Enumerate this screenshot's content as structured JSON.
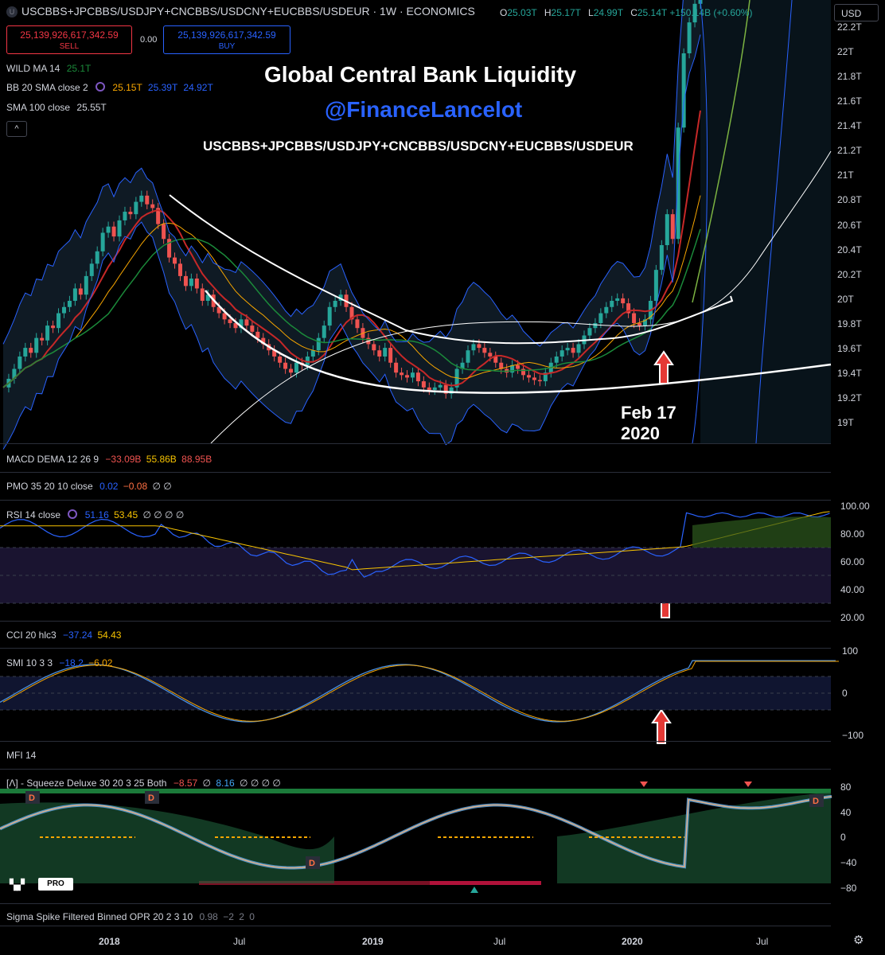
{
  "header": {
    "badge": "U",
    "symbol": "USCBBS+JPCBBS/USDJPY+CNCBBS/USDCNY+EUCBBS/USDEUR",
    "interval": "1W",
    "exchange": "ECONOMICS",
    "title_line": "USCBBS+JPCBBS/USDJPY+CNCBBS/USDCNY+EUCBBS/USDEUR · 1W · ECONOMICS",
    "ohlc": {
      "o_label": "O",
      "o": "25.03T",
      "h_label": "H",
      "h": "25.17T",
      "l_label": "L",
      "l": "24.99T",
      "c_label": "C",
      "c": "25.14T",
      "change": "+150.14B (+0.60%)"
    },
    "currency": "USD"
  },
  "trade": {
    "sell_price": "25,139,926,617,342.59",
    "sell_label": "SELL",
    "spread": "0.00",
    "buy_price": "25,139,926,617,342.59",
    "buy_label": "BUY"
  },
  "legends": {
    "wild_ma": {
      "name": "WILD MA 14",
      "value": "25.1T"
    },
    "bb": {
      "name": "BB 20 SMA close 2",
      "v1": "25.15T",
      "v2": "25.39T",
      "v3": "24.92T"
    },
    "sma": {
      "name": "SMA 100 close",
      "value": "25.55T"
    }
  },
  "annotations": {
    "title": "Global Central Bank Liquidity",
    "handle": "@FinanceLancelot",
    "formula": "USCBBS+JPCBBS/USDJPY+CNCBBS/USDCNY+EUCBBS/USDEUR",
    "date_line1": "Feb 17",
    "date_line2": "2020"
  },
  "price_axis": [
    "22.2T",
    "22T",
    "21.8T",
    "21.6T",
    "21.4T",
    "21.2T",
    "21T",
    "20.8T",
    "20.6T",
    "20.4T",
    "20.2T",
    "20T",
    "19.8T",
    "19.6T",
    "19.4T",
    "19.2T",
    "19T"
  ],
  "panes": {
    "macd": {
      "name": "MACD DEMA 12 26 9",
      "v1": "−33.09B",
      "v2": "55.86B",
      "v3": "88.95B"
    },
    "pmo": {
      "name": "PMO 35 20 10 close",
      "v1": "0.02",
      "v2": "−0.08",
      "v3": "∅ ∅"
    },
    "rsi": {
      "name": "RSI 14 close",
      "v1": "51.16",
      "v2": "53.45",
      "rest": "∅ ∅ ∅ ∅",
      "axis": [
        "100.00",
        "80.00",
        "60.00",
        "40.00",
        "20.00"
      ]
    },
    "cci": {
      "name": "CCI 20 hlc3",
      "v1": "−37.24",
      "v2": "54.43"
    },
    "smi": {
      "name": "SMI 10 3 3",
      "v1": "−18.2",
      "v2": "−6.02",
      "axis": [
        "100",
        "0",
        "−100"
      ]
    },
    "mfi": {
      "name": "MFI 14"
    },
    "squeeze": {
      "name": "[Λ] - Squeeze Deluxe 30 20 3 25 Both",
      "v1": "−8.57",
      "v2": "∅",
      "v3": "8.16",
      "rest": "∅ ∅ ∅ ∅",
      "axis": [
        "80",
        "40",
        "0",
        "−40",
        "−80"
      ],
      "marker": "D"
    },
    "sigma": {
      "name": "Sigma Spike Filtered Binned OPR 20 2 3 10",
      "v1": "0.98",
      "v2": "−2",
      "v3": "2",
      "v4": "0"
    }
  },
  "time_axis": [
    "2018",
    "Jul",
    "2019",
    "Jul",
    "2020",
    "Jul"
  ],
  "logo_text": "PRO",
  "colors": {
    "up": "#26a69a",
    "down": "#ef5350",
    "bb": "#2962ff",
    "sma": "#f7a600",
    "wild": "#1b8a3a",
    "accent": "#2962ff"
  }
}
